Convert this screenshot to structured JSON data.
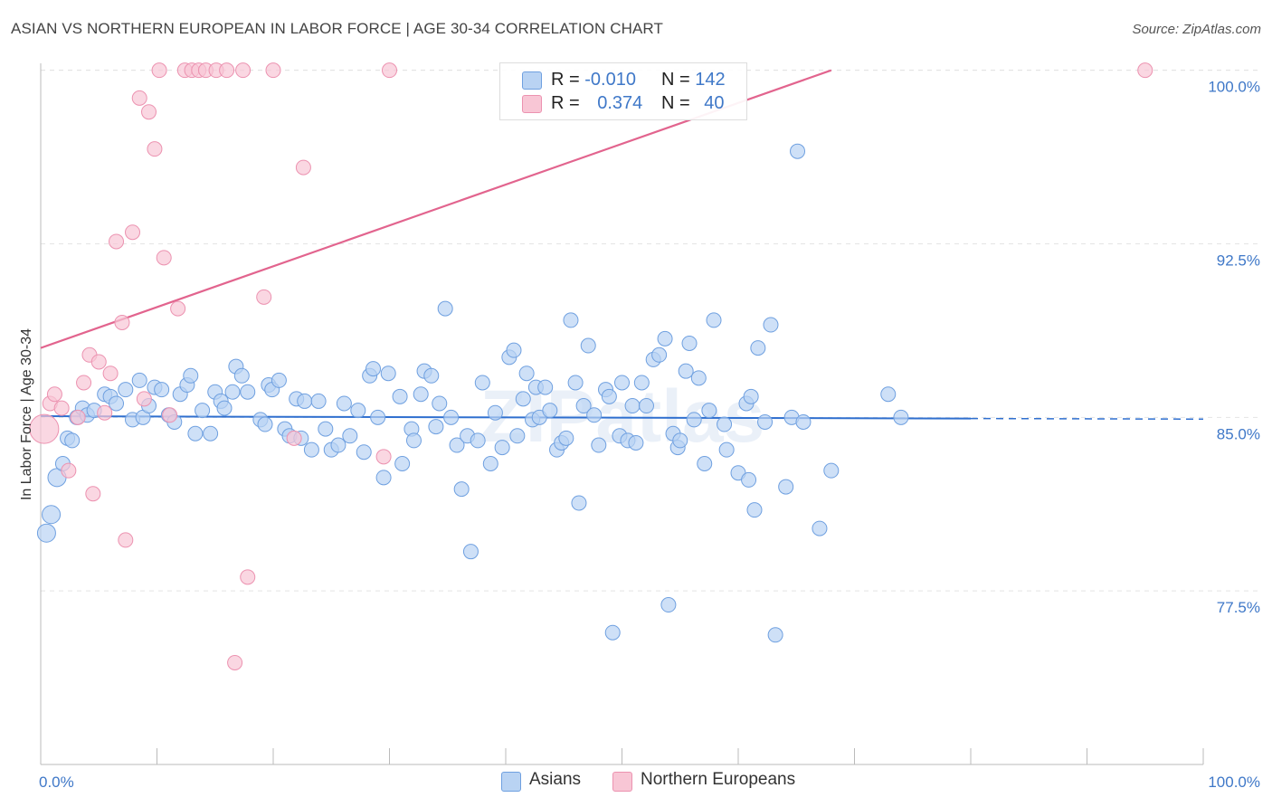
{
  "title": "ASIAN VS NORTHERN EUROPEAN IN LABOR FORCE | AGE 30-34 CORRELATION CHART",
  "source": "Source: ZipAtlas.com",
  "watermark": "ZIPatlas",
  "colors": {
    "asians_fill": "#b9d3f3",
    "asians_stroke": "#6fa0e0",
    "asians_line": "#2f6fcf",
    "northern_fill": "#f8c6d5",
    "northern_stroke": "#ec92b0",
    "northern_line": "#e2648e",
    "axis_text": "#3f78c8",
    "grid": "#e4e4e4"
  },
  "legend": {
    "rows": [
      {
        "r_label": "R =",
        "r_value": "-0.010",
        "n_label": "N =",
        "n_value": "142",
        "series": "asians"
      },
      {
        "r_label": "R =",
        "r_value": "0.374",
        "n_label": "N =",
        "n_value": "40",
        "series": "northern"
      }
    ]
  },
  "bottom_legend": {
    "asians": "Asians",
    "northern": "Northern Europeans"
  },
  "chart_data": {
    "type": "scatter",
    "title": "ASIAN VS NORTHERN EUROPEAN IN LABOR FORCE | AGE 30-34 CORRELATION CHART",
    "xlabel": "",
    "ylabel": "In Labor Force | Age 30-34",
    "xlim": [
      0,
      100
    ],
    "ylim": [
      70.0,
      100.3
    ],
    "x_tick_labels": [
      "0.0%",
      "100.0%"
    ],
    "y_ticks": [
      77.5,
      85.0,
      92.5,
      100.0
    ],
    "y_tick_labels": [
      "77.5%",
      "85.0%",
      "92.5%",
      "100.0%"
    ],
    "grid": true,
    "series": [
      {
        "name": "Asians",
        "key": "asians",
        "r": -0.01,
        "n": 142,
        "trend": {
          "x": [
            0,
            80
          ],
          "y": [
            85.05,
            84.95
          ],
          "dashed_extension_to": 100
        },
        "points": [
          [
            0.5,
            80.0
          ],
          [
            0.9,
            80.8
          ],
          [
            1.4,
            82.4
          ],
          [
            1.9,
            83.0
          ],
          [
            2.3,
            84.1
          ],
          [
            2.7,
            84.0
          ],
          [
            3.1,
            85.0
          ],
          [
            3.6,
            85.4
          ],
          [
            4.0,
            85.1
          ],
          [
            4.6,
            85.3
          ],
          [
            5.5,
            86.0
          ],
          [
            6.0,
            85.9
          ],
          [
            6.5,
            85.6
          ],
          [
            7.3,
            86.2
          ],
          [
            7.9,
            84.9
          ],
          [
            8.5,
            86.6
          ],
          [
            8.8,
            85.0
          ],
          [
            9.3,
            85.5
          ],
          [
            9.8,
            86.3
          ],
          [
            10.4,
            86.2
          ],
          [
            11.0,
            85.1
          ],
          [
            11.5,
            84.8
          ],
          [
            12.0,
            86.0
          ],
          [
            12.6,
            86.4
          ],
          [
            12.9,
            86.8
          ],
          [
            13.3,
            84.3
          ],
          [
            13.9,
            85.3
          ],
          [
            14.6,
            84.3
          ],
          [
            15.0,
            86.1
          ],
          [
            15.5,
            85.7
          ],
          [
            15.8,
            85.4
          ],
          [
            16.5,
            86.1
          ],
          [
            16.8,
            87.2
          ],
          [
            17.3,
            86.8
          ],
          [
            17.8,
            86.1
          ],
          [
            18.9,
            84.9
          ],
          [
            19.3,
            84.7
          ],
          [
            19.6,
            86.4
          ],
          [
            19.9,
            86.2
          ],
          [
            20.5,
            86.6
          ],
          [
            21.0,
            84.5
          ],
          [
            21.4,
            84.2
          ],
          [
            22.0,
            85.8
          ],
          [
            22.4,
            84.1
          ],
          [
            22.7,
            85.7
          ],
          [
            23.3,
            83.6
          ],
          [
            23.9,
            85.7
          ],
          [
            24.5,
            84.5
          ],
          [
            25.0,
            83.6
          ],
          [
            25.6,
            83.8
          ],
          [
            26.1,
            85.6
          ],
          [
            26.6,
            84.2
          ],
          [
            27.3,
            85.3
          ],
          [
            27.8,
            83.5
          ],
          [
            28.3,
            86.8
          ],
          [
            28.6,
            87.1
          ],
          [
            29.0,
            85.0
          ],
          [
            29.5,
            82.4
          ],
          [
            29.9,
            86.9
          ],
          [
            30.9,
            85.9
          ],
          [
            31.1,
            83.0
          ],
          [
            31.9,
            84.5
          ],
          [
            32.1,
            84.0
          ],
          [
            32.7,
            86.0
          ],
          [
            33.0,
            87.0
          ],
          [
            33.6,
            86.8
          ],
          [
            34.0,
            84.6
          ],
          [
            34.3,
            85.6
          ],
          [
            34.8,
            89.7
          ],
          [
            35.3,
            85.0
          ],
          [
            35.8,
            83.8
          ],
          [
            36.2,
            81.9
          ],
          [
            36.7,
            84.2
          ],
          [
            37.0,
            79.2
          ],
          [
            37.6,
            84.0
          ],
          [
            38.0,
            86.5
          ],
          [
            38.7,
            83.0
          ],
          [
            39.1,
            85.2
          ],
          [
            39.7,
            83.7
          ],
          [
            40.3,
            87.6
          ],
          [
            40.7,
            87.9
          ],
          [
            41.0,
            84.2
          ],
          [
            41.5,
            85.8
          ],
          [
            41.8,
            86.9
          ],
          [
            42.3,
            84.9
          ],
          [
            42.6,
            86.3
          ],
          [
            42.9,
            85.0
          ],
          [
            43.4,
            86.3
          ],
          [
            44.4,
            83.6
          ],
          [
            44.8,
            83.9
          ],
          [
            45.2,
            84.1
          ],
          [
            45.6,
            89.2
          ],
          [
            46.0,
            86.5
          ],
          [
            46.3,
            81.3
          ],
          [
            46.7,
            85.5
          ],
          [
            47.1,
            88.1
          ],
          [
            47.6,
            85.1
          ],
          [
            48.0,
            83.8
          ],
          [
            48.6,
            86.2
          ],
          [
            48.9,
            85.9
          ],
          [
            49.2,
            75.7
          ],
          [
            49.8,
            84.2
          ],
          [
            50.0,
            86.5
          ],
          [
            50.5,
            84.0
          ],
          [
            50.9,
            85.5
          ],
          [
            51.2,
            83.9
          ],
          [
            51.7,
            86.5
          ],
          [
            52.1,
            85.5
          ],
          [
            52.7,
            87.5
          ],
          [
            53.2,
            87.7
          ],
          [
            53.7,
            88.4
          ],
          [
            54.0,
            76.9
          ],
          [
            54.4,
            84.3
          ],
          [
            54.8,
            83.7
          ],
          [
            55.0,
            84.0
          ],
          [
            55.5,
            87.0
          ],
          [
            55.8,
            88.2
          ],
          [
            56.2,
            84.9
          ],
          [
            56.6,
            86.7
          ],
          [
            57.1,
            83.0
          ],
          [
            57.5,
            85.3
          ],
          [
            57.9,
            89.2
          ],
          [
            58.8,
            84.7
          ],
          [
            59.0,
            83.6
          ],
          [
            60.0,
            82.6
          ],
          [
            60.7,
            85.6
          ],
          [
            61.1,
            85.9
          ],
          [
            61.4,
            81.0
          ],
          [
            61.7,
            88.0
          ],
          [
            62.3,
            84.8
          ],
          [
            62.8,
            89.0
          ],
          [
            63.2,
            75.6
          ],
          [
            64.1,
            82.0
          ],
          [
            64.6,
            85.0
          ],
          [
            65.1,
            96.5
          ],
          [
            65.6,
            84.8
          ],
          [
            67.0,
            80.2
          ],
          [
            68.0,
            82.7
          ],
          [
            72.9,
            86.0
          ],
          [
            74.0,
            85.0
          ],
          [
            60.9,
            82.3
          ],
          [
            43.8,
            85.3
          ]
        ]
      },
      {
        "name": "Northern Europeans",
        "key": "northern",
        "r": 0.374,
        "n": 40,
        "trend": {
          "x": [
            0,
            68
          ],
          "y": [
            88.0,
            100.0
          ]
        },
        "points": [
          [
            0.3,
            84.5
          ],
          [
            0.8,
            85.6
          ],
          [
            1.2,
            86.0
          ],
          [
            1.8,
            85.4
          ],
          [
            2.4,
            82.7
          ],
          [
            3.2,
            85.0
          ],
          [
            3.7,
            86.5
          ],
          [
            4.2,
            87.7
          ],
          [
            4.5,
            81.7
          ],
          [
            5.0,
            87.4
          ],
          [
            5.5,
            85.2
          ],
          [
            6.0,
            86.9
          ],
          [
            6.5,
            92.6
          ],
          [
            7.0,
            89.1
          ],
          [
            7.3,
            79.7
          ],
          [
            7.9,
            93.0
          ],
          [
            8.5,
            98.8
          ],
          [
            8.9,
            85.8
          ],
          [
            9.3,
            98.2
          ],
          [
            9.8,
            96.6
          ],
          [
            10.2,
            100.0
          ],
          [
            10.6,
            91.9
          ],
          [
            11.1,
            85.1
          ],
          [
            11.8,
            89.7
          ],
          [
            12.4,
            100.0
          ],
          [
            13.0,
            100.0
          ],
          [
            13.6,
            100.0
          ],
          [
            14.2,
            100.0
          ],
          [
            15.1,
            100.0
          ],
          [
            16.0,
            100.0
          ],
          [
            16.7,
            74.4
          ],
          [
            17.4,
            100.0
          ],
          [
            17.8,
            78.1
          ],
          [
            19.2,
            90.2
          ],
          [
            20.0,
            100.0
          ],
          [
            21.8,
            84.1
          ],
          [
            22.6,
            95.8
          ],
          [
            29.5,
            83.3
          ],
          [
            30.0,
            100.0
          ],
          [
            95.0,
            100.0
          ]
        ]
      }
    ]
  }
}
